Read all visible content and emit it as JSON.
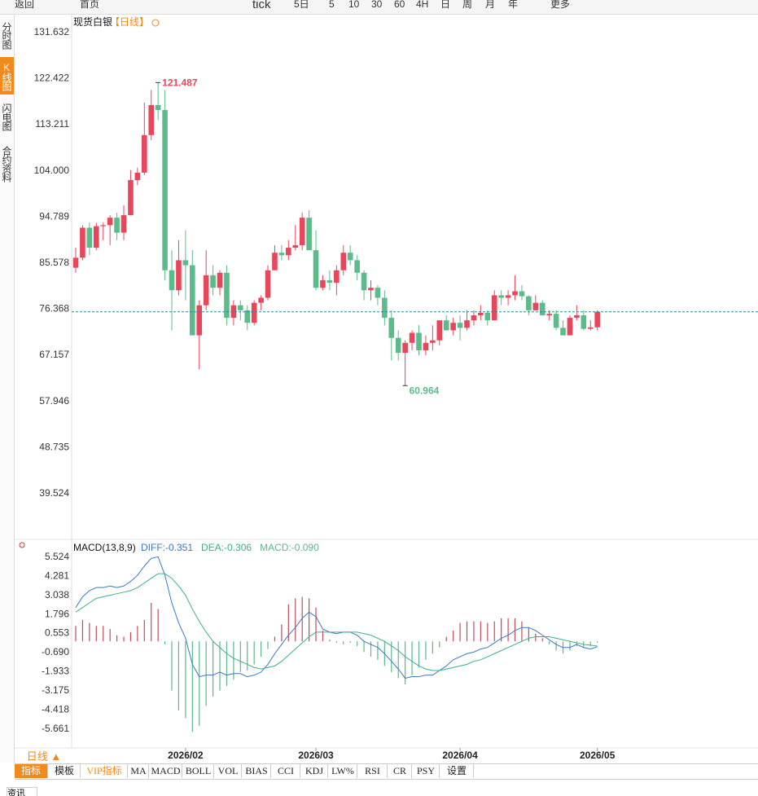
{
  "toolbar": {
    "items": [
      "返回",
      "首页",
      "tick",
      "5日",
      "5",
      "10",
      "30",
      "60",
      "4H",
      "日",
      "周",
      "月",
      "年",
      "更多"
    ]
  },
  "sidebar": {
    "tabs": [
      "分时图",
      "K线图",
      "闪电图",
      "合约资料"
    ],
    "active": 1
  },
  "header": {
    "symbol": "现货白银",
    "period": "【日线】"
  },
  "footer": {
    "period_button": "日线 ▲",
    "tabs": [
      "指标",
      "模板",
      "VIP指标",
      "MA",
      "MACD",
      "BOLL",
      "VOL",
      "BIAS",
      "CCI",
      "KDJ",
      "LW%",
      "RSI",
      "CR",
      "PSY",
      "设置"
    ],
    "bottom_tab": "资讯"
  },
  "chart_data": [
    {
      "type": "candlestick",
      "up_color": "#e8475b",
      "down_color": "#5cbb8a",
      "ylim": [
        30.9,
        134.4
      ],
      "yticks": [
        {
          "value": 131.632,
          "label": "131.632"
        },
        {
          "value": 122.422,
          "label": "122.422"
        },
        {
          "value": 113.211,
          "label": "113.211"
        },
        {
          "value": 104,
          "label": "104.000"
        },
        {
          "value": 94.789,
          "label": "94.789"
        },
        {
          "value": 85.578,
          "label": "85.578"
        },
        {
          "value": 76.368,
          "label": "76.368"
        },
        {
          "value": 67.157,
          "label": "67.157"
        },
        {
          "value": 57.946,
          "label": "57.946"
        },
        {
          "value": 48.735,
          "label": "48.735"
        },
        {
          "value": 39.524,
          "label": "39.524"
        }
      ],
      "open": [
        84.5,
        86.5,
        92.5,
        88.5,
        92.8,
        93,
        94.5,
        91.5,
        95,
        102,
        103.5,
        111,
        117,
        116,
        84,
        80,
        86,
        85,
        71,
        77,
        83,
        80.5,
        83.5,
        74.5,
        77,
        76,
        73.5,
        77.5,
        78.5,
        84,
        87.5,
        87,
        88.5,
        89,
        94.5,
        88,
        80.5,
        82,
        81.5,
        84,
        87.5,
        86,
        83.5,
        80,
        80.5,
        78.5,
        74.5,
        70.5,
        67.5,
        69.5,
        71.5,
        68,
        69.5,
        70,
        74,
        72,
        73.5,
        72.5,
        74,
        75,
        75.5,
        74,
        79,
        78.5,
        79,
        79.8,
        78.8,
        76,
        77.5,
        75,
        75.3,
        72.5,
        71,
        74.5,
        75,
        72.3,
        72.6
      ],
      "high": [
        88.5,
        93,
        93.5,
        93.5,
        93.5,
        95,
        95.5,
        97,
        104,
        104.5,
        117.5,
        120,
        121.487,
        120,
        88,
        90,
        92,
        88,
        78,
        88,
        85,
        84,
        85,
        78,
        78,
        77,
        78,
        79,
        85,
        89,
        89,
        90,
        93,
        95.5,
        96,
        92,
        83,
        84,
        85,
        89,
        89,
        87,
        84,
        82,
        81,
        80,
        76,
        72,
        70,
        72,
        73,
        71,
        73,
        74,
        75,
        74.5,
        75,
        76,
        76,
        77,
        76,
        80,
        80,
        80,
        83,
        81,
        79,
        79,
        78,
        76,
        76,
        74,
        75,
        77,
        76,
        74,
        76
      ],
      "low": [
        83.5,
        86,
        87,
        88,
        90,
        89,
        90,
        90,
        95,
        101,
        103,
        110,
        114,
        82,
        72,
        79,
        78,
        71,
        64.2,
        76,
        79,
        79,
        73,
        73,
        74,
        72,
        73,
        76,
        78,
        84,
        86,
        86,
        88,
        88,
        88,
        80,
        80,
        80,
        79,
        83,
        85,
        82,
        78,
        78,
        77,
        73,
        66,
        66,
        60.964,
        68,
        67,
        67,
        68,
        69,
        72,
        71,
        70,
        72,
        73,
        74,
        73,
        74,
        77,
        77,
        78,
        78,
        75,
        76,
        75,
        74,
        72,
        71,
        71,
        74,
        72,
        72,
        72
      ],
      "close": [
        86.5,
        92.5,
        88.5,
        92.8,
        93,
        94.5,
        91.5,
        95,
        102,
        103.5,
        111,
        117,
        116,
        84,
        80,
        86,
        85,
        71,
        77,
        83,
        80.5,
        83.5,
        74.5,
        77,
        76,
        73.5,
        77.5,
        78.5,
        84,
        87.5,
        87,
        88.5,
        89,
        94.5,
        88,
        80.5,
        82,
        81.5,
        84,
        87.5,
        86,
        83.5,
        80,
        80.5,
        78.5,
        74.5,
        70.5,
        67.5,
        69.5,
        71.5,
        68,
        69.5,
        70,
        74,
        72,
        73.5,
        72.5,
        74,
        75,
        75.5,
        74,
        79,
        78.5,
        79,
        79.8,
        78.8,
        76,
        77.5,
        75,
        75.3,
        72.5,
        71,
        74.5,
        75,
        72.3,
        72.6,
        75.7
      ]
    },
    {
      "type": "macd",
      "title": "MACD(13,8,9)",
      "readouts": [
        "DIFF:-0.351",
        "DEA:-0.306",
        "MACD:-0.090"
      ],
      "ylim": [
        -6.83,
        6.53
      ],
      "yticks": [
        5.524,
        4.281,
        3.038,
        1.796,
        0.553,
        {
          "value": -0.69,
          "label": "-0.690"
        },
        -1.933,
        -3.175,
        -4.418,
        -5.661
      ],
      "xticks": [
        {
          "value": 16,
          "label": "2026/02"
        },
        {
          "value": 35,
          "label": "2026/03"
        },
        {
          "value": 56,
          "label": "2026/04"
        },
        {
          "value": 76,
          "label": "2026/05"
        }
      ],
      "series": [
        {
          "color": "#3a78c3",
          "values": [
            2.2,
            2.9,
            3.3,
            3.5,
            3.5,
            3.6,
            3.5,
            3.6,
            3.9,
            4.3,
            4.9,
            5.4,
            5.5,
            4.3,
            2.5,
            1.2,
            0.2,
            -1.5,
            -2.3,
            -2.2,
            -2.2,
            -2,
            -2.2,
            -2.1,
            -2.1,
            -2.3,
            -2.2,
            -2,
            -1.5,
            -0.8,
            -0.2,
            0.4,
            0.9,
            1.5,
            1.9,
            1.6,
            0.8,
            0.6,
            0.5,
            0.6,
            0.6,
            0.4,
            0,
            -0.2,
            -0.4,
            -0.8,
            -1.3,
            -1.8,
            -2.4,
            -2.3,
            -2.3,
            -2.2,
            -2.2,
            -1.9,
            -1.6,
            -1.2,
            -1,
            -0.8,
            -0.7,
            -0.5,
            -0.4,
            -0.1,
            0.2,
            0.4,
            0.7,
            0.9,
            0.9,
            0.7,
            0.4,
            0.1,
            -0.2,
            -0.4,
            -0.4,
            -0.2,
            -0.4,
            -0.5,
            -0.351
          ]
        },
        {
          "color": "#3cb08e",
          "values": [
            1.9,
            2.2,
            2.5,
            2.8,
            2.9,
            3,
            3.1,
            3.2,
            3.3,
            3.5,
            3.8,
            4.1,
            4.4,
            4.4,
            4.1,
            3.6,
            3,
            2.1,
            1.3,
            0.6,
            0,
            -0.4,
            -0.8,
            -1.1,
            -1.3,
            -1.5,
            -1.7,
            -1.8,
            -1.7,
            -1.6,
            -1.3,
            -0.9,
            -0.5,
            -0.1,
            0.3,
            0.6,
            0.6,
            0.6,
            0.6,
            0.6,
            0.6,
            0.6,
            0.5,
            0.4,
            0.2,
            0,
            -0.3,
            -0.6,
            -1,
            -1.3,
            -1.6,
            -1.8,
            -1.9,
            -1.9,
            -1.8,
            -1.7,
            -1.6,
            -1.5,
            -1.3,
            -1.2,
            -1,
            -0.8,
            -0.6,
            -0.4,
            -0.2,
            0,
            0.2,
            0.3,
            0.3,
            0.3,
            0.2,
            0.1,
            0,
            -0.1,
            -0.2,
            -0.25,
            -0.306
          ]
        },
        {
          "color": "#5cb88b",
          "up_color": "#c44a5a",
          "values": [
            1,
            1.4,
            1.2,
            1,
            1,
            0.8,
            0.4,
            0.3,
            0.6,
            1,
            1.4,
            2.5,
            2.1,
            -0.2,
            -3.2,
            -4.5,
            -5,
            -5.9,
            -5.5,
            -4.2,
            -3.6,
            -3.2,
            -2.9,
            -2.5,
            -2,
            -1.9,
            -1.5,
            -1,
            -0.5,
            0.3,
            1.1,
            2.4,
            2.8,
            2.9,
            2.8,
            2.2,
            0.7,
            0.1,
            -0.1,
            -0.2,
            -0.1,
            -0.3,
            -0.7,
            -1,
            -1.2,
            -1.6,
            -2,
            -2.4,
            -2.8,
            -2.2,
            -1.7,
            -1.2,
            -0.8,
            -0.4,
            0.3,
            0.7,
            1.2,
            1.3,
            1.3,
            1.3,
            1.2,
            1.3,
            1.5,
            1.5,
            1.5,
            1.3,
            0.9,
            0.5,
            0.2,
            -0.2,
            -0.6,
            -0.8,
            -0.6,
            -0.3,
            -0.4,
            -0.3,
            -0.09
          ]
        }
      ]
    }
  ]
}
